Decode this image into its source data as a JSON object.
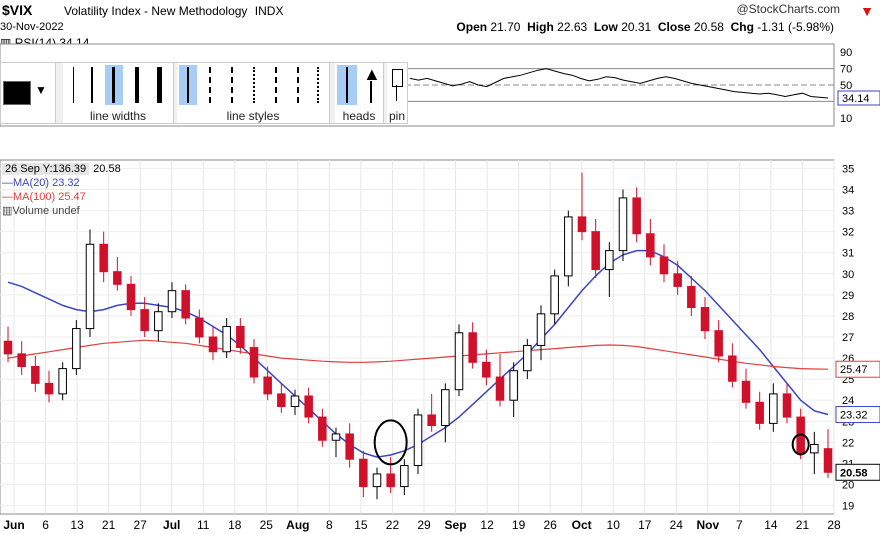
{
  "header": {
    "symbol": "$VIX",
    "name": "Volatility Index - New Methodology",
    "exchange": "INDX",
    "date": "30-Nov-2022",
    "brand": "@StockCharts.com",
    "open_label": "Open",
    "open": "21.70",
    "high_label": "High",
    "high": "22.63",
    "low_label": "Low",
    "low": "20.31",
    "close_label": "Close",
    "close": "20.58",
    "chg_label": "Chg",
    "chg": "-1.31 (-5.98%)",
    "dropdown_icon": "triangle-down-icon"
  },
  "toolbar": {
    "line_widths_label": "line widths",
    "line_styles_label": "line styles",
    "heads_label": "heads",
    "pin_label": "pin",
    "color_swatch": "#000000"
  },
  "rsi_panel": {
    "label": "RSI(14)",
    "value": "34.14",
    "yticks": [
      "90",
      "70",
      "50",
      "30",
      "10"
    ],
    "current_badge": "34.14"
  },
  "legend": {
    "cursor_badge": "26 Sep Y:136.39",
    "cursor_close": "20.58",
    "ma20_label": "MA(20)",
    "ma20_value": "23.32",
    "ma100_label": "MA(100)",
    "ma100_value": "25.47",
    "volume_label": "Volume undef"
  },
  "price_badges": {
    "ma100": "25.47",
    "ma20": "23.32",
    "close": "20.58"
  },
  "colors": {
    "up": "#ffffff",
    "down": "#d0112b",
    "ma20": "#3b45c0",
    "ma100": "#e0403f",
    "rsi": "#000000",
    "selected_tool": "#a8cdf5"
  },
  "chart_data": [
    {
      "type": "line",
      "title": "RSI(14)",
      "ylim": [
        0,
        100
      ],
      "yticks": [
        10,
        30,
        50,
        70,
        90
      ],
      "reference_lines": [
        70,
        50,
        30
      ],
      "series": [
        {
          "name": "RSI(14)",
          "values": [
            58,
            56,
            58,
            55,
            52,
            49,
            51,
            54,
            50,
            48,
            53,
            58,
            60,
            62,
            65,
            68,
            70,
            67,
            64,
            62,
            58,
            55,
            57,
            60,
            59,
            56,
            54,
            52,
            55,
            58,
            60,
            58,
            55,
            52,
            50,
            48,
            46,
            44,
            42,
            41,
            40,
            39,
            40,
            38,
            36,
            38,
            40,
            36,
            35,
            34.14
          ]
        }
      ]
    },
    {
      "type": "candlestick",
      "title": "$VIX Volatility Index - New Methodology",
      "ylim": [
        18.6,
        35.4
      ],
      "yticks": [
        19,
        20,
        21,
        22,
        23,
        24,
        25,
        26,
        27,
        28,
        29,
        30,
        31,
        32,
        33,
        34,
        35
      ],
      "x_tick_labels": [
        "Jun",
        "6",
        "13",
        "21",
        "27",
        "Jul",
        "11",
        "18",
        "25",
        "Aug",
        "8",
        "15",
        "22",
        "29",
        "Sep",
        "12",
        "19",
        "26",
        "Oct",
        "10",
        "17",
        "24",
        "Nov",
        "7",
        "14",
        "21",
        "28"
      ],
      "x_tick_bold": [
        "Jun",
        "Jul",
        "Aug",
        "Sep",
        "Oct",
        "Nov"
      ],
      "candles": [
        {
          "o": 26.8,
          "h": 27.5,
          "l": 25.8,
          "c": 26.2
        },
        {
          "o": 26.2,
          "h": 26.8,
          "l": 25.2,
          "c": 25.6
        },
        {
          "o": 25.6,
          "h": 26.1,
          "l": 24.4,
          "c": 24.8
        },
        {
          "o": 24.8,
          "h": 25.4,
          "l": 23.9,
          "c": 24.3
        },
        {
          "o": 24.3,
          "h": 25.8,
          "l": 24.0,
          "c": 25.5
        },
        {
          "o": 25.5,
          "h": 27.8,
          "l": 25.2,
          "c": 27.4
        },
        {
          "o": 27.4,
          "h": 32.1,
          "l": 27.0,
          "c": 31.4
        },
        {
          "o": 31.4,
          "h": 32.0,
          "l": 29.6,
          "c": 30.1
        },
        {
          "o": 30.1,
          "h": 30.8,
          "l": 29.2,
          "c": 29.5
        },
        {
          "o": 29.5,
          "h": 29.9,
          "l": 28.0,
          "c": 28.3
        },
        {
          "o": 28.3,
          "h": 28.9,
          "l": 27.0,
          "c": 27.3
        },
        {
          "o": 27.3,
          "h": 28.6,
          "l": 26.8,
          "c": 28.2
        },
        {
          "o": 28.2,
          "h": 29.6,
          "l": 27.9,
          "c": 29.2
        },
        {
          "o": 29.2,
          "h": 29.5,
          "l": 27.6,
          "c": 27.9
        },
        {
          "o": 27.9,
          "h": 28.3,
          "l": 26.7,
          "c": 27.0
        },
        {
          "o": 27.0,
          "h": 27.5,
          "l": 25.9,
          "c": 26.3
        },
        {
          "o": 26.3,
          "h": 27.9,
          "l": 26.0,
          "c": 27.5
        },
        {
          "o": 27.5,
          "h": 27.9,
          "l": 26.2,
          "c": 26.5
        },
        {
          "o": 26.5,
          "h": 26.9,
          "l": 24.8,
          "c": 25.1
        },
        {
          "o": 25.1,
          "h": 25.6,
          "l": 24.0,
          "c": 24.3
        },
        {
          "o": 24.3,
          "h": 24.8,
          "l": 23.4,
          "c": 23.7
        },
        {
          "o": 23.7,
          "h": 24.5,
          "l": 23.3,
          "c": 24.2
        },
        {
          "o": 24.2,
          "h": 24.6,
          "l": 22.9,
          "c": 23.2
        },
        {
          "o": 23.2,
          "h": 23.6,
          "l": 21.8,
          "c": 22.1
        },
        {
          "o": 22.1,
          "h": 22.7,
          "l": 21.3,
          "c": 22.4
        },
        {
          "o": 22.4,
          "h": 22.9,
          "l": 20.8,
          "c": 21.2
        },
        {
          "o": 21.2,
          "h": 21.6,
          "l": 19.4,
          "c": 19.9
        },
        {
          "o": 19.9,
          "h": 20.8,
          "l": 19.3,
          "c": 20.5
        },
        {
          "o": 20.5,
          "h": 21.3,
          "l": 19.6,
          "c": 19.9
        },
        {
          "o": 19.9,
          "h": 21.2,
          "l": 19.5,
          "c": 20.9
        },
        {
          "o": 20.9,
          "h": 23.6,
          "l": 20.5,
          "c": 23.3
        },
        {
          "o": 23.3,
          "h": 24.3,
          "l": 22.5,
          "c": 22.8
        },
        {
          "o": 22.8,
          "h": 24.8,
          "l": 22.0,
          "c": 24.5
        },
        {
          "o": 24.5,
          "h": 27.6,
          "l": 24.2,
          "c": 27.2
        },
        {
          "o": 27.2,
          "h": 27.7,
          "l": 25.5,
          "c": 25.8
        },
        {
          "o": 25.8,
          "h": 26.4,
          "l": 24.7,
          "c": 25.1
        },
        {
          "o": 25.1,
          "h": 26.2,
          "l": 23.7,
          "c": 24.0
        },
        {
          "o": 24.0,
          "h": 25.8,
          "l": 23.2,
          "c": 25.4
        },
        {
          "o": 25.4,
          "h": 26.9,
          "l": 25.0,
          "c": 26.6
        },
        {
          "o": 26.6,
          "h": 28.5,
          "l": 25.9,
          "c": 28.1
        },
        {
          "o": 28.1,
          "h": 30.2,
          "l": 27.6,
          "c": 29.9
        },
        {
          "o": 29.9,
          "h": 33.0,
          "l": 29.4,
          "c": 32.7
        },
        {
          "o": 32.7,
          "h": 34.8,
          "l": 31.6,
          "c": 32.0
        },
        {
          "o": 32.0,
          "h": 32.6,
          "l": 29.8,
          "c": 30.2
        },
        {
          "o": 30.2,
          "h": 31.5,
          "l": 28.9,
          "c": 31.1
        },
        {
          "o": 31.1,
          "h": 34.0,
          "l": 30.6,
          "c": 33.6
        },
        {
          "o": 33.6,
          "h": 34.1,
          "l": 31.5,
          "c": 31.9
        },
        {
          "o": 31.9,
          "h": 32.6,
          "l": 30.4,
          "c": 30.8
        },
        {
          "o": 30.8,
          "h": 31.4,
          "l": 29.6,
          "c": 30.0
        },
        {
          "o": 30.0,
          "h": 30.6,
          "l": 29.0,
          "c": 29.4
        },
        {
          "o": 29.4,
          "h": 29.9,
          "l": 28.0,
          "c": 28.4
        },
        {
          "o": 28.4,
          "h": 28.9,
          "l": 26.9,
          "c": 27.3
        },
        {
          "o": 27.3,
          "h": 27.8,
          "l": 25.8,
          "c": 26.1
        },
        {
          "o": 26.1,
          "h": 26.7,
          "l": 24.6,
          "c": 24.9
        },
        {
          "o": 24.9,
          "h": 25.5,
          "l": 23.6,
          "c": 23.9
        },
        {
          "o": 23.9,
          "h": 24.4,
          "l": 22.6,
          "c": 22.9
        },
        {
          "o": 22.9,
          "h": 24.8,
          "l": 22.5,
          "c": 24.3
        },
        {
          "o": 24.3,
          "h": 24.8,
          "l": 22.9,
          "c": 23.2
        },
        {
          "o": 23.2,
          "h": 23.6,
          "l": 21.2,
          "c": 21.5
        },
        {
          "o": 21.5,
          "h": 22.5,
          "l": 20.5,
          "c": 21.9
        },
        {
          "o": 21.7,
          "h": 22.63,
          "l": 20.31,
          "c": 20.58
        }
      ],
      "series": [
        {
          "name": "MA(20)",
          "values": [
            29.6,
            29.4,
            29.1,
            28.8,
            28.5,
            28.3,
            28.2,
            28.3,
            28.5,
            28.6,
            28.6,
            28.5,
            28.4,
            28.2,
            27.9,
            27.5,
            27.1,
            26.6,
            26.0,
            25.4,
            24.8,
            24.2,
            23.6,
            23.0,
            22.4,
            21.9,
            21.5,
            21.3,
            21.4,
            21.6,
            21.9,
            22.3,
            22.7,
            23.2,
            23.8,
            24.4,
            25.0,
            25.6,
            26.2,
            26.9,
            27.6,
            28.4,
            29.2,
            29.9,
            30.5,
            30.9,
            31.1,
            31.1,
            30.8,
            30.4,
            29.8,
            29.2,
            28.5,
            27.8,
            27.1,
            26.4,
            25.6,
            24.8,
            24.0,
            23.5,
            23.32
          ]
        },
        {
          "name": "MA(100)",
          "values": [
            26.0,
            26.1,
            26.2,
            26.3,
            26.4,
            26.5,
            26.6,
            26.7,
            26.75,
            26.8,
            26.85,
            26.8,
            26.75,
            26.7,
            26.6,
            26.5,
            26.4,
            26.3,
            26.2,
            26.1,
            26.0,
            25.95,
            25.9,
            25.85,
            25.82,
            25.8,
            25.8,
            25.82,
            25.85,
            25.9,
            25.95,
            26.0,
            26.05,
            26.1,
            26.15,
            26.2,
            26.25,
            26.3,
            26.35,
            26.4,
            26.45,
            26.5,
            26.55,
            26.6,
            26.62,
            26.6,
            26.55,
            26.45,
            26.35,
            26.25,
            26.15,
            26.05,
            25.95,
            25.85,
            25.75,
            25.68,
            25.6,
            25.55,
            25.5,
            25.48,
            25.47
          ]
        }
      ]
    }
  ]
}
